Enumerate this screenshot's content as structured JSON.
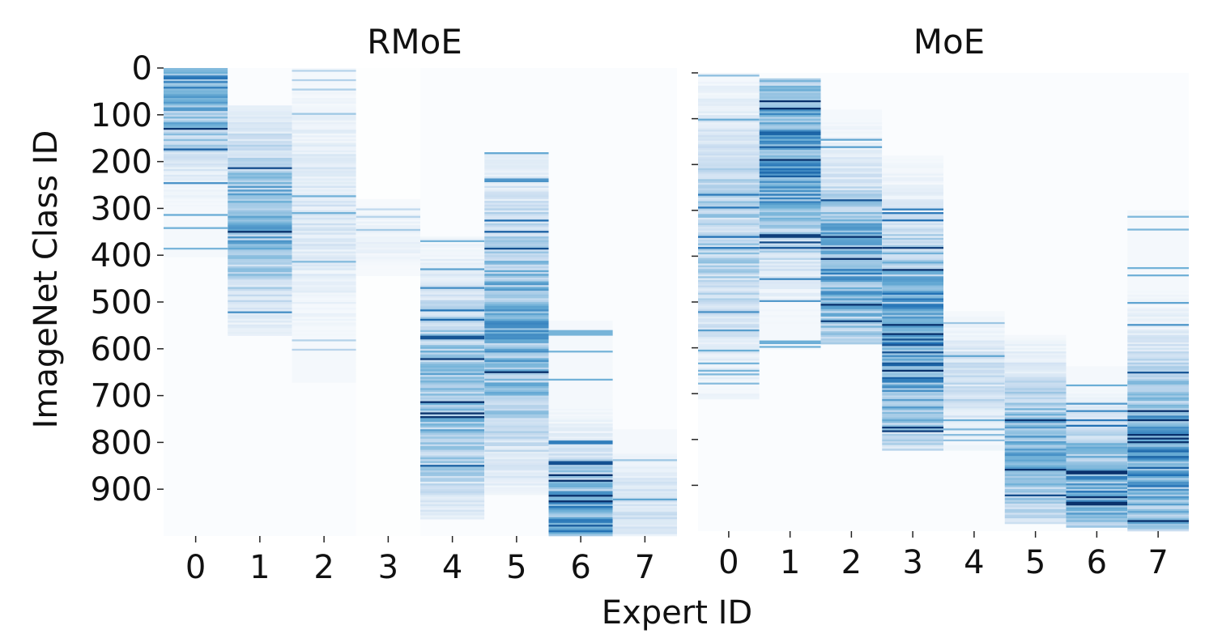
{
  "chart_data": [
    {
      "type": "heatmap",
      "title": "RMoE",
      "xlabel": "Expert ID",
      "ylabel": "ImageNet Class ID",
      "x_categories": [
        "0",
        "1",
        "2",
        "3",
        "4",
        "5",
        "6",
        "7"
      ],
      "y_ticks": [
        "0",
        "100",
        "200",
        "300",
        "400",
        "500",
        "600",
        "700",
        "800",
        "900"
      ],
      "y_range": [
        0,
        1000
      ],
      "colormap": [
        "#ffffff",
        "#08306b"
      ],
      "experts": [
        {
          "expert": "0",
          "start": 0,
          "end": 400,
          "peak": 0,
          "spread": 240,
          "max": 0.85,
          "baseline": 0.02
        },
        {
          "expert": "1",
          "start": 80,
          "end": 570,
          "peak": 320,
          "spread": 240,
          "max": 0.7,
          "baseline": 0.02
        },
        {
          "expert": "2",
          "start": 0,
          "end": 670,
          "peak": 300,
          "spread": 300,
          "max": 0.25,
          "baseline": 0.02
        },
        {
          "expert": "3",
          "start": 280,
          "end": 440,
          "peak": 360,
          "spread": 80,
          "max": 0.15,
          "baseline": 0.01
        },
        {
          "expert": "4",
          "start": 360,
          "end": 960,
          "peak": 700,
          "spread": 300,
          "max": 0.65,
          "baseline": 0.02
        },
        {
          "expert": "5",
          "start": 180,
          "end": 910,
          "peak": 550,
          "spread": 360,
          "max": 0.7,
          "baseline": 0.02
        },
        {
          "expert": "6",
          "start": 540,
          "end": 1000,
          "peak": 980,
          "spread": 200,
          "max": 0.9,
          "baseline": 0.02
        },
        {
          "expert": "7",
          "start": 770,
          "end": 1000,
          "peak": 930,
          "spread": 120,
          "max": 0.3,
          "baseline": 0.02
        }
      ]
    },
    {
      "type": "heatmap",
      "title": "MoE",
      "xlabel": "Expert ID",
      "ylabel": "",
      "x_categories": [
        "0",
        "1",
        "2",
        "3",
        "4",
        "5",
        "6",
        "7"
      ],
      "y_ticks": [],
      "y_range": [
        0,
        1000
      ],
      "colormap": [
        "#ffffff",
        "#08306b"
      ],
      "experts": [
        {
          "expert": "0",
          "start": 0,
          "end": 710,
          "peak": 350,
          "spread": 360,
          "max": 0.45,
          "baseline": 0.02
        },
        {
          "expert": "1",
          "start": 10,
          "end": 600,
          "peak": 180,
          "spread": 280,
          "max": 0.9,
          "baseline": 0.02
        },
        {
          "expert": "2",
          "start": 80,
          "end": 590,
          "peak": 420,
          "spread": 260,
          "max": 0.75,
          "baseline": 0.02
        },
        {
          "expert": "3",
          "start": 180,
          "end": 820,
          "peak": 580,
          "spread": 300,
          "max": 0.95,
          "baseline": 0.02
        },
        {
          "expert": "4",
          "start": 520,
          "end": 820,
          "peak": 680,
          "spread": 150,
          "max": 0.35,
          "baseline": 0.02
        },
        {
          "expert": "5",
          "start": 570,
          "end": 980,
          "peak": 820,
          "spread": 220,
          "max": 0.7,
          "baseline": 0.02
        },
        {
          "expert": "6",
          "start": 640,
          "end": 990,
          "peak": 900,
          "spread": 180,
          "max": 0.8,
          "baseline": 0.02
        },
        {
          "expert": "7",
          "start": 300,
          "end": 1000,
          "peak": 850,
          "spread": 300,
          "max": 0.85,
          "baseline": 0.02
        }
      ]
    }
  ]
}
